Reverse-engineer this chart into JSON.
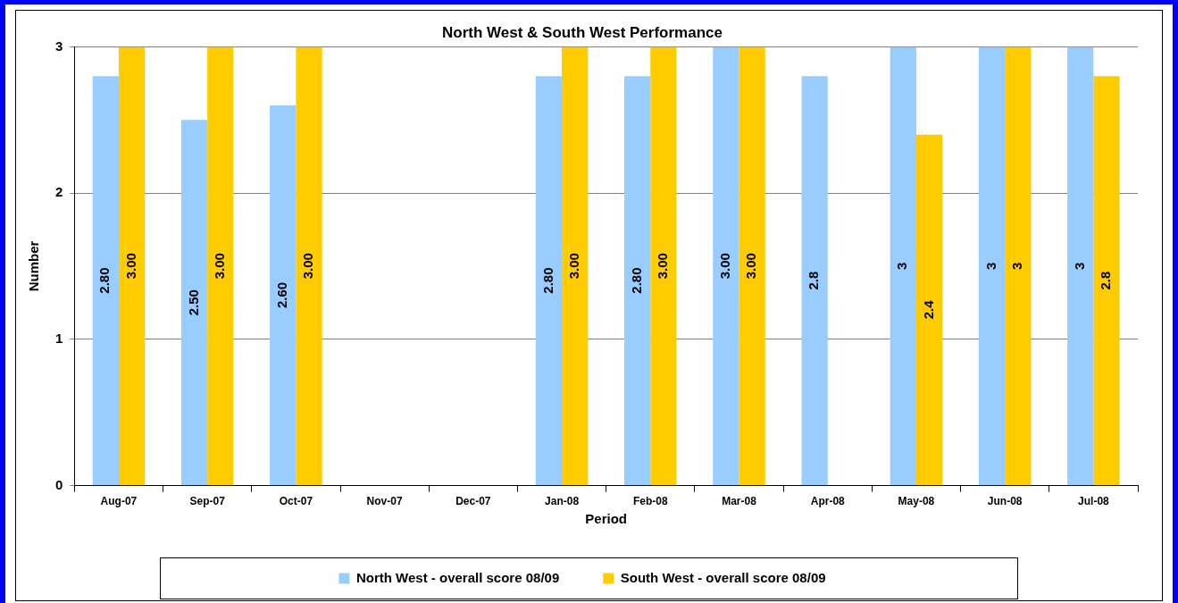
{
  "chart_data": {
    "type": "bar",
    "title": "North West & South West Performance",
    "xlabel": "Period",
    "ylabel": "Number",
    "categories": [
      "Aug-07",
      "Sep-07",
      "Oct-07",
      "Nov-07",
      "Dec-07",
      "Jan-08",
      "Feb-08",
      "Mar-08",
      "Apr-08",
      "May-08",
      "Jun-08",
      "Jul-08"
    ],
    "series": [
      {
        "name": "North West - overall score 08/09",
        "color": "#99ccff",
        "values": [
          2.8,
          2.5,
          2.6,
          null,
          null,
          2.8,
          2.8,
          3,
          2.8,
          3,
          3,
          3
        ],
        "value_labels": [
          "2.80",
          "2.50",
          "2.60",
          null,
          null,
          "2.80",
          "2.80",
          "3.00",
          "2.8",
          "3",
          "3",
          "3"
        ]
      },
      {
        "name": "South West - overall score 08/09",
        "color": "#ffcc00",
        "values": [
          3,
          3,
          3,
          null,
          null,
          3,
          3,
          3,
          null,
          2.4,
          3,
          2.8
        ],
        "value_labels": [
          "3.00",
          "3.00",
          "3.00",
          null,
          null,
          "3.00",
          "3.00",
          "3.00",
          null,
          "2.4",
          "3",
          "2.8"
        ]
      }
    ],
    "ylim": [
      0,
      3
    ],
    "yticks": [
      0,
      1,
      2,
      3
    ],
    "grid": "y",
    "legend": "bottom"
  }
}
